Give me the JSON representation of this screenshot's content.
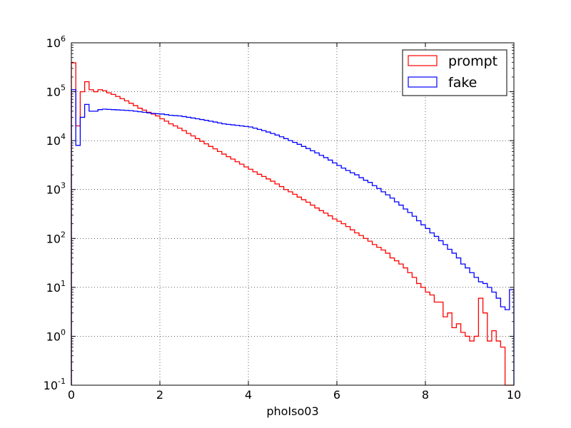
{
  "chart_data": {
    "type": "step",
    "xlabel": "phoIso03",
    "ylabel": "",
    "title": "",
    "xlim": [
      0,
      10
    ],
    "ylim": [
      0.1,
      1000000
    ],
    "yscale": "log",
    "grid": true,
    "legend_position": "top-right",
    "x_ticks": [
      "0",
      "2",
      "4",
      "6",
      "8",
      "10"
    ],
    "y_ticks": [
      {
        "value": 0.1,
        "base": "10",
        "exp": "-1"
      },
      {
        "value": 1,
        "base": "10",
        "exp": "0"
      },
      {
        "value": 10,
        "base": "10",
        "exp": "1"
      },
      {
        "value": 100,
        "base": "10",
        "exp": "2"
      },
      {
        "value": 1000,
        "base": "10",
        "exp": "3"
      },
      {
        "value": 10000,
        "base": "10",
        "exp": "4"
      },
      {
        "value": 100000,
        "base": "10",
        "exp": "5"
      },
      {
        "value": 1000000,
        "base": "10",
        "exp": "6"
      }
    ],
    "bins": {
      "start": 0,
      "width": 0.1,
      "count": 100
    },
    "series": [
      {
        "name": "prompt",
        "color": "#ff0000",
        "values": [
          390000,
          20000,
          100000,
          160000,
          110000,
          100000,
          110000,
          105000,
          95000,
          88000,
          80000,
          72000,
          65000,
          58000,
          52000,
          46000,
          42000,
          38000,
          35000,
          32000,
          28000,
          25000,
          22000,
          20000,
          18000,
          16000,
          14000,
          12500,
          11000,
          9700,
          8600,
          7600,
          6800,
          6000,
          5300,
          4700,
          4200,
          3700,
          3300,
          2900,
          2600,
          2300,
          2050,
          1850,
          1650,
          1480,
          1300,
          1150,
          1000,
          900,
          800,
          700,
          620,
          550,
          480,
          420,
          370,
          330,
          290,
          250,
          225,
          200,
          175,
          150,
          130,
          115,
          100,
          88,
          75,
          66,
          58,
          50,
          40,
          35,
          30,
          25,
          20,
          16,
          12,
          10,
          8,
          7,
          5,
          5,
          2.5,
          3,
          1.5,
          1.8,
          1.2,
          1.0,
          0.8,
          1.0,
          6,
          3,
          0.8,
          1.3,
          0.8,
          0.6,
          0.08,
          0.08
        ]
      },
      {
        "name": "fake",
        "color": "#0000ff",
        "values": [
          110000,
          8000,
          30000,
          55000,
          40000,
          40000,
          43000,
          44000,
          43500,
          43000,
          42500,
          42000,
          41500,
          41000,
          40000,
          39000,
          38000,
          37000,
          36000,
          35500,
          35000,
          34000,
          33000,
          32500,
          32000,
          31000,
          30000,
          29000,
          28000,
          27000,
          26000,
          25000,
          24000,
          23000,
          22000,
          21500,
          21000,
          20500,
          20000,
          19500,
          19000,
          18000,
          17000,
          16000,
          15000,
          14000,
          13000,
          12000,
          11000,
          10000,
          9200,
          8400,
          7600,
          6900,
          6200,
          5600,
          5000,
          4500,
          4000,
          3500,
          3100,
          2750,
          2450,
          2200,
          2000,
          1750,
          1550,
          1400,
          1200,
          1050,
          900,
          780,
          670,
          560,
          480,
          400,
          340,
          285,
          230,
          190,
          160,
          130,
          110,
          90,
          75,
          60,
          50,
          40,
          30,
          25,
          20,
          16,
          13,
          12,
          10,
          8,
          6,
          4,
          3.5,
          9
        ]
      }
    ]
  }
}
